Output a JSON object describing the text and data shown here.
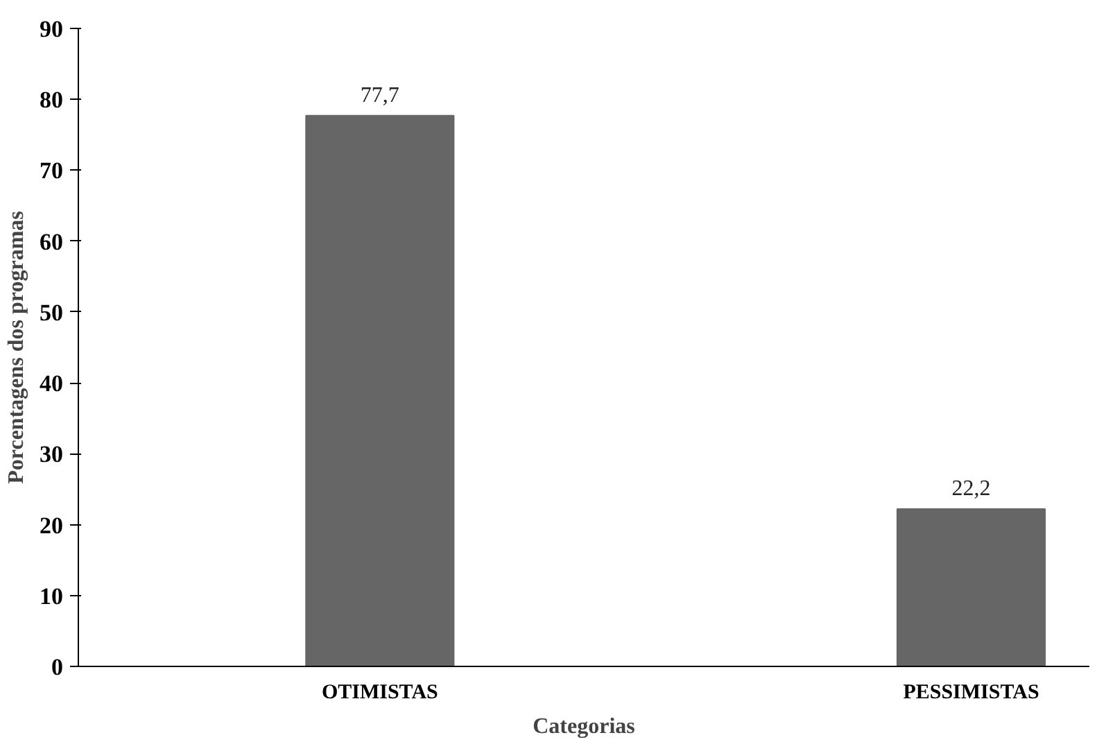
{
  "chart_data": {
    "type": "bar",
    "xlabel": "Categorias",
    "ylabel": "Porcentagens dos programas",
    "categories": [
      "OTIMISTAS",
      "PESSIMISTAS"
    ],
    "values": [
      77.7,
      22.2
    ],
    "value_labels": [
      "77,7",
      "22,2"
    ],
    "color": "#666666",
    "ylim": [
      0,
      90
    ],
    "yticks": [
      0,
      10,
      20,
      30,
      40,
      50,
      60,
      70,
      80,
      90
    ],
    "grid": false
  }
}
